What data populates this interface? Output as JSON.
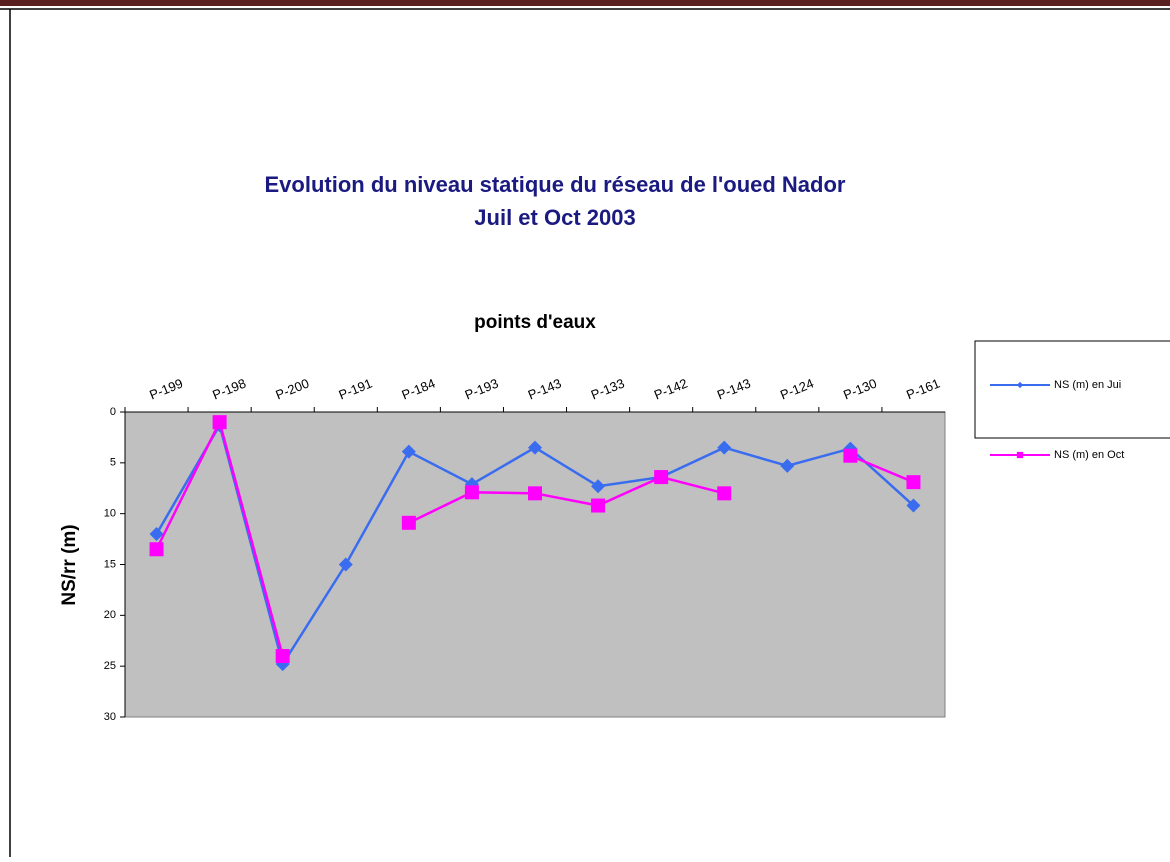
{
  "chart_data": {
    "type": "line",
    "title": "Evolution du niveau statique du réseau de l'oued Nador",
    "subtitle": "Juil et Oct 2003",
    "x_label": "points d'eaux",
    "y_label": "NS/rr (m)",
    "categories": [
      "P-199",
      "P-198",
      "P-200",
      "P-191",
      "P-184",
      "P-193",
      "P-143",
      "P-133",
      "P-142",
      "P-143",
      "P-124",
      "P-130",
      "P-161"
    ],
    "series": [
      {
        "name": "NS (m) en Jui",
        "color": "#3a6cf0",
        "marker": "diamond",
        "values": [
          12,
          1.3,
          24.8,
          15,
          3.9,
          7.1,
          3.5,
          7.3,
          6.4,
          3.5,
          5.3,
          3.6,
          9.2
        ]
      },
      {
        "name": "NS (m) en Oct",
        "color": "#ff00ff",
        "marker": "square",
        "values": [
          13.5,
          1,
          24,
          null,
          10.9,
          7.9,
          8.0,
          9.2,
          6.4,
          8.0,
          null,
          4.3,
          6.9
        ]
      }
    ],
    "ylim": [
      0,
      30
    ],
    "yticks": [
      0,
      5,
      10,
      15,
      20,
      25,
      30
    ],
    "y_inverted": true,
    "x_axis_position": "top",
    "plot_background": "#c0c0c0",
    "legend": "right"
  }
}
